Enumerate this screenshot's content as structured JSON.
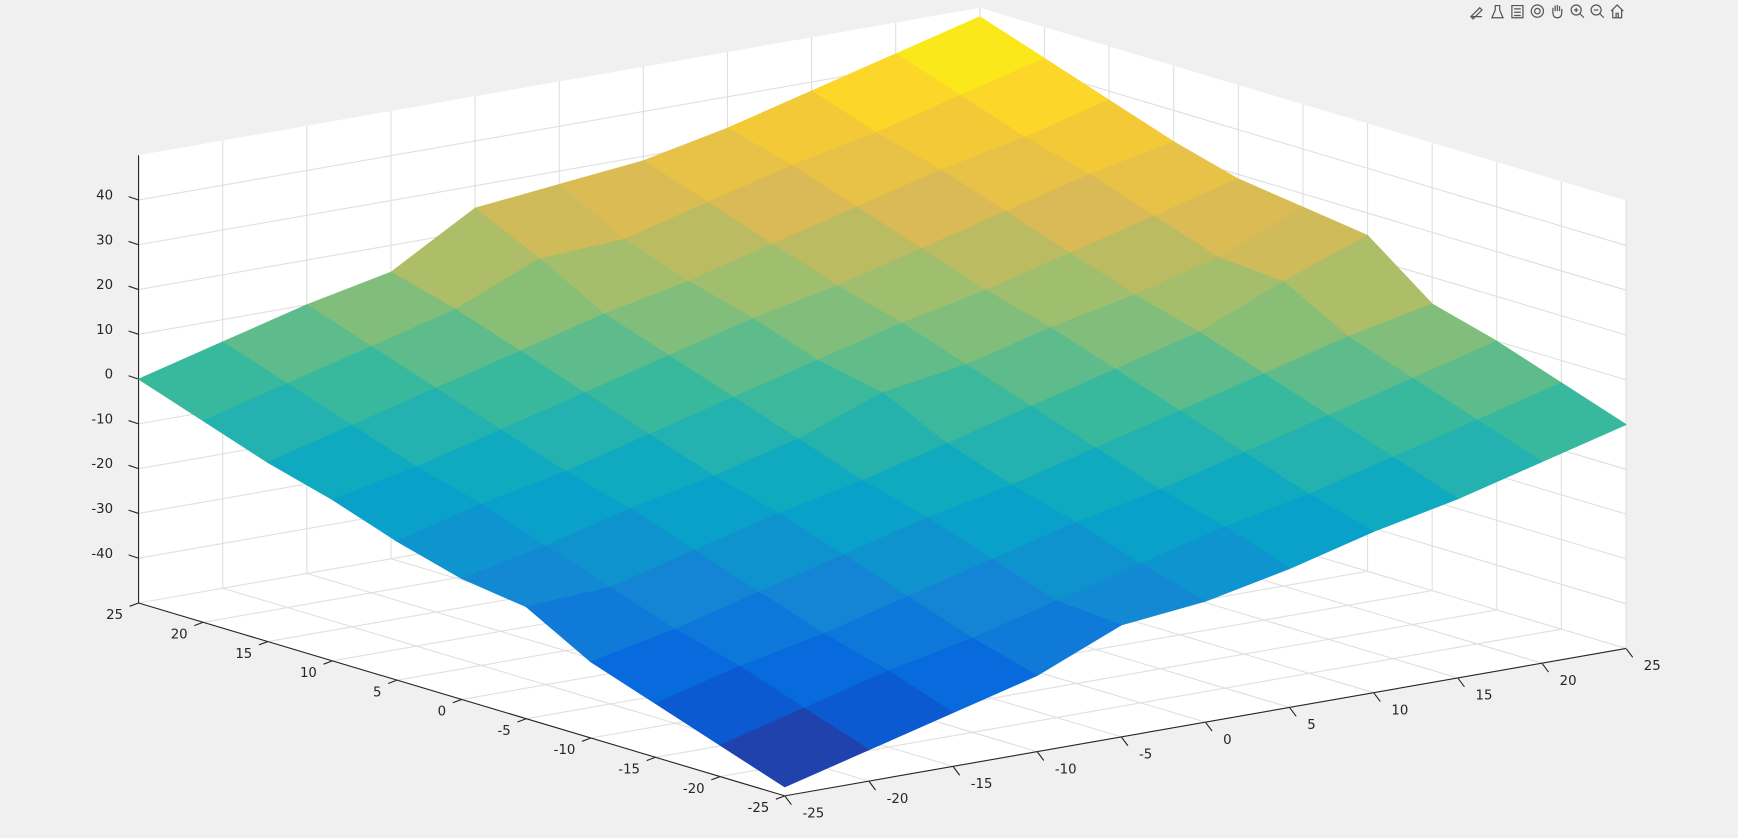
{
  "chart_data": {
    "type": "surface",
    "x": [
      -25,
      -20,
      -15,
      -10,
      -5,
      0,
      5,
      10,
      15,
      20,
      25
    ],
    "y": [
      -25,
      -20,
      -15,
      -10,
      -5,
      0,
      5,
      10,
      15,
      20,
      25
    ],
    "z": [
      [
        -48,
        -43,
        -38,
        -33,
        -25,
        -23,
        -19,
        -14,
        -10,
        -5,
        0
      ],
      [
        -43,
        -38,
        -33,
        -29,
        -24,
        -19,
        -14,
        -10,
        -5,
        0,
        5
      ],
      [
        -38,
        -33,
        -29,
        -24,
        -19,
        -14,
        -10,
        -5,
        0,
        5,
        10
      ],
      [
        -33,
        -29,
        -24,
        -19,
        -14,
        -10,
        -5,
        0,
        5,
        10,
        14
      ],
      [
        -25,
        -24,
        -19,
        -14,
        -10,
        -5,
        0,
        5,
        10,
        18,
        25
      ],
      [
        -23,
        -19,
        -14,
        -10,
        -5,
        2,
        5,
        10,
        14,
        19,
        27
      ],
      [
        -19,
        -14,
        -10,
        -5,
        0,
        5,
        10,
        14,
        19,
        24,
        29
      ],
      [
        -14,
        -10,
        -5,
        0,
        5,
        10,
        14,
        19,
        24,
        29,
        33
      ],
      [
        -10,
        -5,
        0,
        5,
        10,
        14,
        19,
        24,
        29,
        33,
        38
      ],
      [
        -5,
        0,
        5,
        10,
        18,
        19,
        24,
        29,
        33,
        38,
        43
      ],
      [
        0,
        5,
        10,
        14,
        25,
        27,
        29,
        33,
        38,
        43,
        48
      ]
    ],
    "xlim": [
      -25,
      25
    ],
    "ylim": [
      -25,
      25
    ],
    "zlim": [
      -50,
      50
    ],
    "xticks": [
      -25,
      -20,
      -15,
      -10,
      -5,
      0,
      5,
      10,
      15,
      20,
      25
    ],
    "yticks": [
      -25,
      -20,
      -15,
      -10,
      -5,
      0,
      5,
      10,
      15,
      20,
      25
    ],
    "zticks": [
      -40,
      -30,
      -20,
      -10,
      0,
      10,
      20,
      30,
      40
    ],
    "grid": true,
    "colormap": [
      "#352a87",
      "#0363e1",
      "#1485d4",
      "#06a7c6",
      "#38b99e",
      "#92bf73",
      "#d9ba56",
      "#fcce2e",
      "#f9fb0e"
    ]
  }
}
